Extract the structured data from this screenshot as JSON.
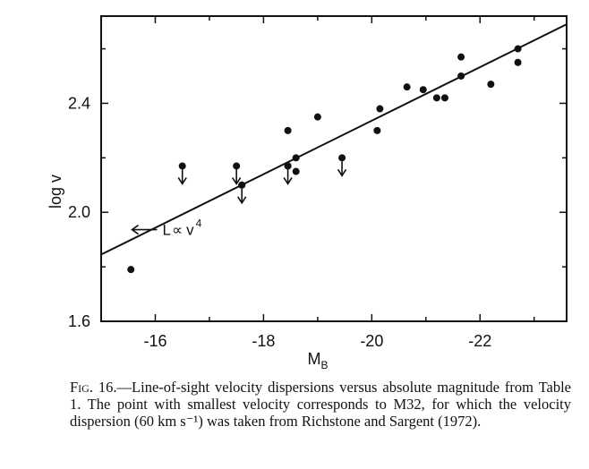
{
  "chart_data": {
    "type": "scatter",
    "xlabel": "M",
    "xlabel_sub": "B",
    "ylabel": "log v",
    "xlim": [
      -15,
      -23.6
    ],
    "ylim": [
      1.6,
      2.72
    ],
    "x_ticks": [
      -16,
      -18,
      -20,
      -22
    ],
    "x_tick_labels": [
      "-16",
      "-18",
      "-20",
      "-22"
    ],
    "y_ticks": [
      1.6,
      2.0,
      2.4
    ],
    "y_tick_labels": [
      "1.6",
      "2.0",
      "2.4"
    ],
    "grid": false,
    "points": [
      {
        "x": -15.55,
        "y": 1.79
      },
      {
        "x": -17.6,
        "y": 2.1
      },
      {
        "x": -18.45,
        "y": 2.3
      },
      {
        "x": -18.6,
        "y": 2.2
      },
      {
        "x": -18.6,
        "y": 2.15
      },
      {
        "x": -18.45,
        "y": 2.17
      },
      {
        "x": -19.0,
        "y": 2.35
      },
      {
        "x": -20.1,
        "y": 2.3
      },
      {
        "x": -20.15,
        "y": 2.38
      },
      {
        "x": -20.65,
        "y": 2.46
      },
      {
        "x": -20.95,
        "y": 2.45
      },
      {
        "x": -21.2,
        "y": 2.42
      },
      {
        "x": -21.35,
        "y": 2.42
      },
      {
        "x": -21.65,
        "y": 2.5
      },
      {
        "x": -21.65,
        "y": 2.57
      },
      {
        "x": -22.2,
        "y": 2.47
      },
      {
        "x": -22.7,
        "y": 2.6
      },
      {
        "x": -22.7,
        "y": 2.55
      }
    ],
    "upper_limits": [
      {
        "x": -16.5,
        "y": 2.17
      },
      {
        "x": -17.5,
        "y": 2.17
      },
      {
        "x": -17.6,
        "y": 2.1
      },
      {
        "x": -18.45,
        "y": 2.17
      },
      {
        "x": -19.45,
        "y": 2.2
      }
    ],
    "fit_line": {
      "x": [
        -15,
        -23.6
      ],
      "y": [
        1.845,
        2.69
      ]
    },
    "annotation": {
      "text": "L",
      "symbol": "∝",
      "var": "v",
      "exponent": "4",
      "at": {
        "x": -16.1,
        "y": 1.92
      }
    }
  },
  "caption": {
    "fig_label": "Fig. 16.",
    "text": "—Line-of-sight velocity dispersions versus absolute magnitude from Table 1. The point with smallest velocity corresponds to M32, for which the velocity dispersion (60 km s⁻¹) was taken from Richstone and Sargent (1972)."
  }
}
